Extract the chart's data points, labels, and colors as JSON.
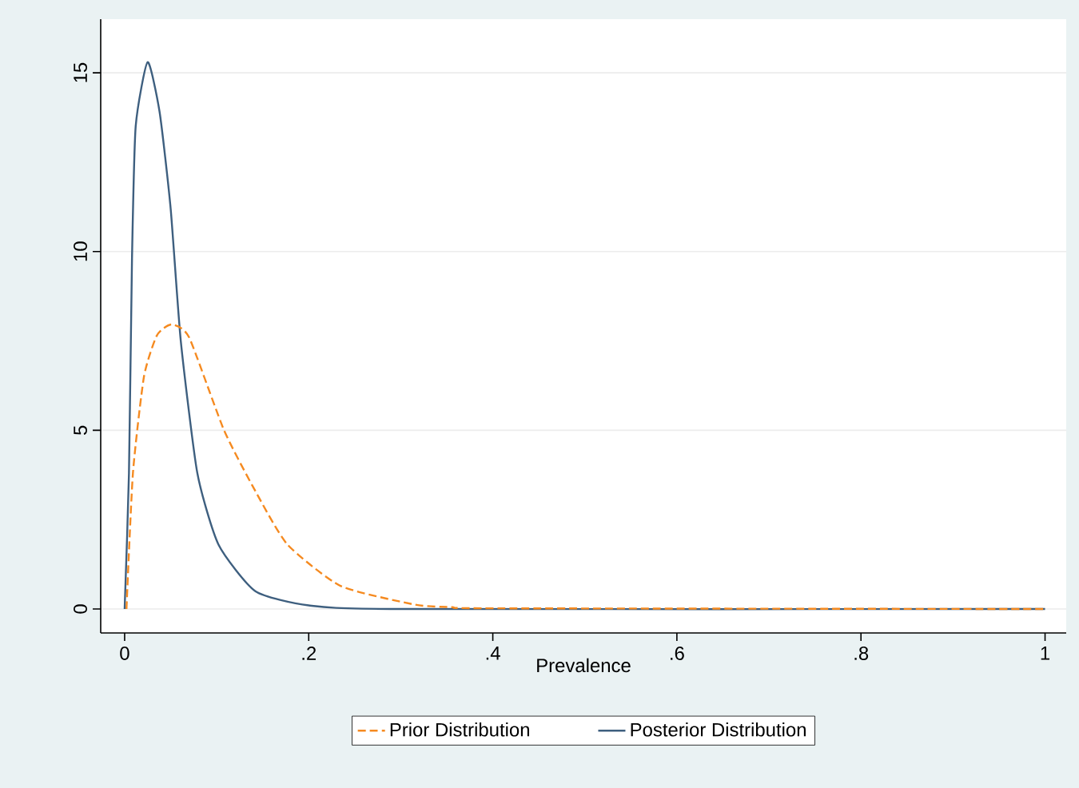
{
  "chart_data": {
    "type": "line",
    "xlabel": "Prevalence",
    "xlim": [
      -0.026,
      1.023
    ],
    "ylim": [
      -0.67,
      16.5
    ],
    "xticks": [
      0,
      {
        "value": 0.2,
        "label": ".2"
      },
      {
        "value": 0.4,
        "label": ".4"
      },
      {
        "value": 0.6,
        "label": ".6"
      },
      {
        "value": 0.8,
        "label": ".8"
      },
      1
    ],
    "yticks": [
      0,
      5,
      10,
      15
    ],
    "grid": "y",
    "legend": "bottom",
    "marker": "none",
    "series": [
      {
        "name": "Prior Distribution",
        "color": "#f58a20",
        "line_style": "dashed",
        "x": [
          0.002,
          0.009,
          0.021,
          0.035,
          0.051,
          0.07,
          0.108,
          0.142,
          0.177,
          0.235,
          0.316,
          0.356,
          0.4,
          1
        ],
        "values": [
          0,
          3.8,
          6.5,
          7.65,
          7.96,
          7.6,
          5.0,
          3.3,
          1.8,
          0.64,
          0.12,
          0.05,
          0.02,
          0
        ]
      },
      {
        "name": "Posterior Distribution",
        "color": "#3e5f7f",
        "line_style": "solid",
        "x": [
          0,
          0.0047,
          0.008,
          0.012,
          0.025,
          0.038,
          0.05,
          0.061,
          0.079,
          0.102,
          0.142,
          0.2,
          0.3,
          1
        ],
        "values": [
          0,
          3.8,
          9.8,
          13.5,
          15.3,
          13.9,
          11.2,
          7.5,
          3.8,
          1.8,
          0.5,
          0.1,
          0,
          0
        ]
      }
    ]
  }
}
